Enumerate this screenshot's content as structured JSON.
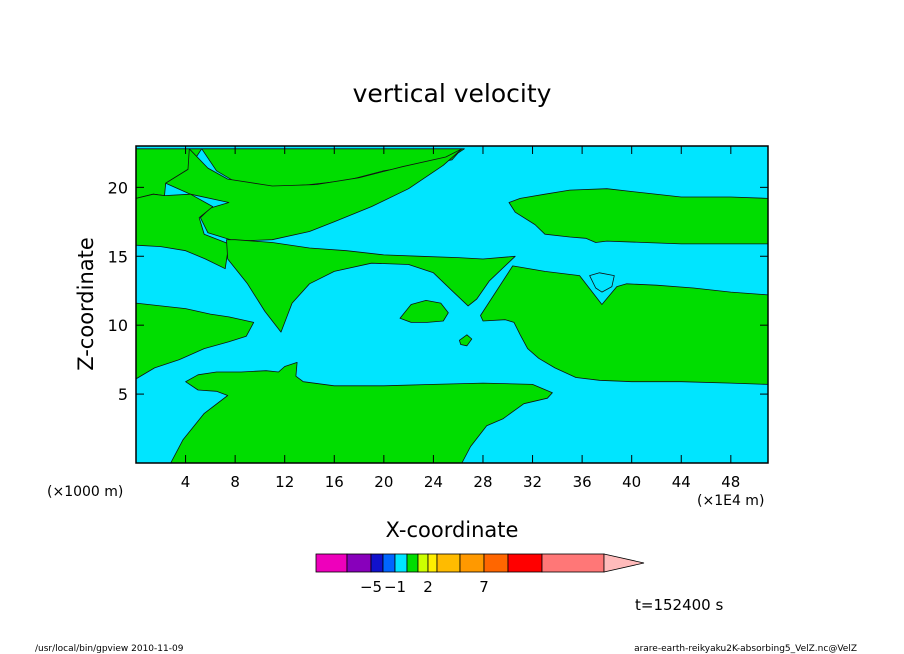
{
  "chart_data": {
    "type": "contour",
    "title": "vertical velocity",
    "xlabel": "X-coordinate",
    "ylabel": "Z-coordinate",
    "x_units_left": "(×1000 m)",
    "x_units_right": "(×1E4 m)",
    "xlim": [
      0,
      51
    ],
    "ylim": [
      0,
      23
    ],
    "xticks": [
      4,
      8,
      12,
      16,
      20,
      24,
      28,
      32,
      36,
      40,
      44,
      48
    ],
    "yticks": [
      5,
      10,
      15,
      20
    ],
    "grid": false,
    "background_color": "#00e5ff",
    "fill_color": "#00dd00",
    "regions": [
      {
        "name": "upper-left-band",
        "points": [
          [
            0,
            19.2
          ],
          [
            1.4,
            19.5
          ],
          [
            2.3,
            19.4
          ],
          [
            2.4,
            20.3
          ],
          [
            4.2,
            21.3
          ],
          [
            5.3,
            22.8
          ],
          [
            0,
            22.8
          ]
        ]
      },
      {
        "name": "upper-tongue",
        "points": [
          [
            5.3,
            22.8
          ],
          [
            6.5,
            21.2
          ],
          [
            8,
            20.4
          ],
          [
            11,
            20
          ],
          [
            14,
            20.2
          ],
          [
            17,
            20.5
          ],
          [
            20,
            21.2
          ],
          [
            23,
            21.6
          ],
          [
            25.5,
            22
          ],
          [
            26,
            22.5
          ],
          [
            26.5,
            22.8
          ]
        ]
      },
      {
        "name": "upper-tongue-body",
        "points": [
          [
            4.3,
            22.8
          ],
          [
            5.8,
            21.4
          ],
          [
            7.4,
            20.6
          ],
          [
            11,
            20.1
          ],
          [
            14.5,
            20.2
          ],
          [
            18,
            20.7
          ],
          [
            21.5,
            21.5
          ],
          [
            25,
            22.2
          ],
          [
            26.3,
            22.8
          ],
          [
            24.8,
            21.6
          ],
          [
            22,
            19.9
          ],
          [
            19,
            18.6
          ],
          [
            16,
            17.5
          ],
          [
            14,
            16.8
          ],
          [
            11,
            16.2
          ],
          [
            8,
            16.1
          ],
          [
            5.8,
            16.7
          ],
          [
            5.2,
            17.8
          ],
          [
            6,
            18.5
          ],
          [
            7.5,
            18.9
          ],
          [
            4.4,
            19.5
          ],
          [
            2.4,
            20.3
          ],
          [
            4.2,
            21.3
          ]
        ]
      },
      {
        "name": "left-middle-band",
        "points": [
          [
            0,
            15.8
          ],
          [
            2,
            15.7
          ],
          [
            4,
            15.4
          ],
          [
            5.6,
            14.8
          ],
          [
            7.2,
            14.1
          ],
          [
            7.5,
            15.9
          ],
          [
            5.5,
            16.6
          ],
          [
            5.1,
            17.8
          ],
          [
            6.2,
            18.6
          ],
          [
            4.4,
            19.5
          ],
          [
            2.3,
            19.4
          ],
          [
            1.4,
            19.5
          ],
          [
            0,
            19.2
          ]
        ]
      },
      {
        "name": "central-triangle",
        "points": [
          [
            7.3,
            16.2
          ],
          [
            8,
            16.2
          ],
          [
            11,
            16
          ],
          [
            14,
            15.6
          ],
          [
            17,
            15.4
          ],
          [
            20,
            15.1
          ],
          [
            23,
            15
          ],
          [
            26,
            14.9
          ],
          [
            28,
            14.8
          ],
          [
            30.6,
            15
          ],
          [
            28.5,
            13.2
          ],
          [
            27.5,
            11.9
          ],
          [
            26.8,
            11.4
          ],
          [
            25.5,
            12.5
          ],
          [
            24,
            13.8
          ],
          [
            22,
            14.4
          ],
          [
            19,
            14.5
          ],
          [
            16,
            13.9
          ],
          [
            14,
            13
          ],
          [
            12.6,
            11.6
          ],
          [
            11.7,
            9.5
          ],
          [
            10.4,
            11
          ],
          [
            9,
            13
          ],
          [
            7.4,
            14.8
          ]
        ]
      },
      {
        "name": "left-lower-band",
        "points": [
          [
            0,
            11.6
          ],
          [
            2,
            11.4
          ],
          [
            4,
            11.2
          ],
          [
            6,
            10.8
          ],
          [
            7.5,
            10.6
          ],
          [
            9.5,
            10.2
          ],
          [
            8.9,
            9.2
          ],
          [
            7.5,
            8.8
          ],
          [
            5.5,
            8.3
          ],
          [
            3.5,
            7.5
          ],
          [
            1.5,
            6.9
          ],
          [
            0,
            6.1
          ]
        ]
      },
      {
        "name": "small-island-24",
        "points": [
          [
            21.3,
            10.5
          ],
          [
            22.2,
            11.5
          ],
          [
            23.4,
            11.8
          ],
          [
            24.6,
            11.6
          ],
          [
            25.2,
            10.9
          ],
          [
            24.8,
            10.3
          ],
          [
            23.5,
            10.2
          ],
          [
            22.2,
            10.2
          ]
        ]
      },
      {
        "name": "dot-27",
        "points": [
          [
            26.1,
            8.9
          ],
          [
            26.7,
            9.3
          ],
          [
            27.1,
            9
          ],
          [
            26.7,
            8.5
          ],
          [
            26.2,
            8.6
          ]
        ]
      },
      {
        "name": "lower-left-band",
        "points": [
          [
            4,
            5.9
          ],
          [
            5,
            6.4
          ],
          [
            6.5,
            6.6
          ],
          [
            8.5,
            6.6
          ],
          [
            10.5,
            6.7
          ],
          [
            11.5,
            6.6
          ],
          [
            12,
            7
          ],
          [
            13,
            7.3
          ],
          [
            12.9,
            6.3
          ],
          [
            13.5,
            5.9
          ],
          [
            16,
            5.6
          ],
          [
            20,
            5.6
          ],
          [
            24,
            5.7
          ],
          [
            28,
            5.8
          ],
          [
            32,
            5.7
          ],
          [
            33.6,
            5.1
          ],
          [
            33.2,
            4.7
          ],
          [
            31.3,
            4.3
          ],
          [
            29.6,
            3.2
          ],
          [
            28.3,
            2.7
          ],
          [
            27,
            1.2
          ],
          [
            26.3,
            0
          ],
          [
            2.8,
            0
          ],
          [
            3.8,
            1.7
          ],
          [
            5.5,
            3.6
          ],
          [
            7.4,
            4.9
          ],
          [
            6.5,
            5.2
          ],
          [
            5,
            5.3
          ]
        ]
      },
      {
        "name": "right-upper-band",
        "points": [
          [
            30.1,
            18.9
          ],
          [
            31,
            19.2
          ],
          [
            33,
            19.5
          ],
          [
            35,
            19.8
          ],
          [
            38,
            19.9
          ],
          [
            41,
            19.6
          ],
          [
            44,
            19.3
          ],
          [
            48,
            19.3
          ],
          [
            51,
            19.2
          ],
          [
            51,
            15.9
          ],
          [
            48,
            15.9
          ],
          [
            44,
            15.9
          ],
          [
            41,
            16
          ],
          [
            38,
            16.1
          ],
          [
            37.1,
            16
          ],
          [
            36.3,
            16.3
          ],
          [
            35,
            16.4
          ],
          [
            33,
            16.6
          ],
          [
            32.2,
            17.3
          ],
          [
            30.6,
            18.2
          ]
        ]
      },
      {
        "name": "right-lower-band",
        "points": [
          [
            30.4,
            14.3
          ],
          [
            33,
            13.9
          ],
          [
            35.8,
            13.6
          ],
          [
            37.6,
            11.5
          ],
          [
            38.8,
            12.8
          ],
          [
            39.6,
            13
          ],
          [
            42,
            12.9
          ],
          [
            45,
            12.7
          ],
          [
            48,
            12.4
          ],
          [
            51,
            12.2
          ],
          [
            51,
            5.7
          ],
          [
            48,
            5.8
          ],
          [
            44,
            5.9
          ],
          [
            40,
            5.9
          ],
          [
            37.4,
            6
          ],
          [
            35.5,
            6.2
          ],
          [
            33.8,
            6.9
          ],
          [
            32.5,
            7.6
          ],
          [
            31.6,
            8.3
          ],
          [
            31,
            9.3
          ],
          [
            30.5,
            10.2
          ],
          [
            29.8,
            10.4
          ],
          [
            28,
            10.3
          ],
          [
            27.8,
            10.7
          ]
        ]
      },
      {
        "name": "cyan-notch-38",
        "points": [
          [
            36.6,
            13.6
          ],
          [
            37.4,
            13.8
          ],
          [
            38.6,
            13.6
          ],
          [
            38.4,
            12.8
          ],
          [
            37.6,
            12.4
          ],
          [
            37.1,
            12.7
          ]
        ]
      }
    ],
    "colorbar": {
      "colors": [
        "#ee00bb",
        "#8800bb",
        "#1111cc",
        "#0066ff",
        "#00e5ff",
        "#00dd00",
        "#ccff00",
        "#ffee00",
        "#ffbb00",
        "#ff9900",
        "#ff6600",
        "#ff0000",
        "#ff7777",
        "#ffbbbb"
      ],
      "labels": [
        {
          "value": "−5",
          "index": 2
        },
        {
          "value": "−1",
          "index": 4
        },
        {
          "value": "2",
          "index": 7
        },
        {
          "value": "7",
          "index": 10
        }
      ]
    },
    "time_label": "t=152400 s"
  },
  "footer": {
    "left": "/usr/local/bin/gpview   2010-11-09",
    "right": "arare-earth-reikyaku2K-absorbing5_VelZ.nc@VelZ"
  }
}
